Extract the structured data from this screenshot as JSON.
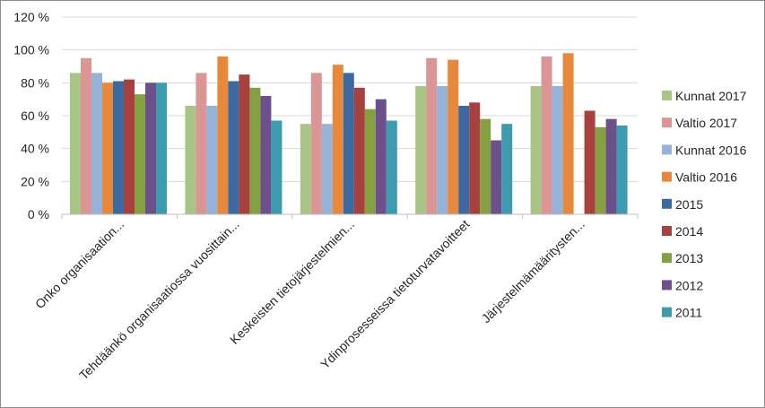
{
  "chart_data": {
    "type": "bar",
    "categories": [
      "Onko organisaation...",
      "Tehdäänkö organisaatiossa vuosittain...",
      "Keskeisten tietojärjestelmien...",
      "Ydinprosesseissa tietoturvatavoitteet",
      "Järjestelmämääritysten..."
    ],
    "ylim": [
      0,
      120
    ],
    "yticks": [
      "0 %",
      "20 %",
      "40 %",
      "60 %",
      "80 %",
      "100 %",
      "120 %"
    ],
    "ytick_values": [
      0,
      20,
      40,
      60,
      80,
      100,
      120
    ],
    "grid": true,
    "legend_position": "right",
    "series": [
      {
        "name": "Kunnat 2017",
        "color": "#a9c585",
        "values": [
          86,
          66,
          55,
          78,
          78
        ]
      },
      {
        "name": "Valtio 2017",
        "color": "#d99694",
        "values": [
          95,
          86,
          86,
          95,
          96
        ]
      },
      {
        "name": "Kunnat 2016",
        "color": "#95b3d7",
        "values": [
          86,
          66,
          55,
          78,
          78
        ]
      },
      {
        "name": "Valtio 2016",
        "color": "#e8883a",
        "values": [
          80,
          96,
          91,
          94,
          98
        ]
      },
      {
        "name": "2015",
        "color": "#3b6aa3",
        "values": [
          81,
          81,
          86,
          66,
          null
        ]
      },
      {
        "name": "2014",
        "color": "#a6413e",
        "values": [
          82,
          85,
          77,
          68,
          63
        ]
      },
      {
        "name": "2013",
        "color": "#84a043",
        "values": [
          73,
          77,
          64,
          58,
          53
        ]
      },
      {
        "name": "2012",
        "color": "#6d4f8c",
        "values": [
          80,
          72,
          70,
          45,
          58
        ]
      },
      {
        "name": "2011",
        "color": "#3d9bb0",
        "values": [
          80,
          57,
          57,
          55,
          54
        ]
      }
    ]
  }
}
